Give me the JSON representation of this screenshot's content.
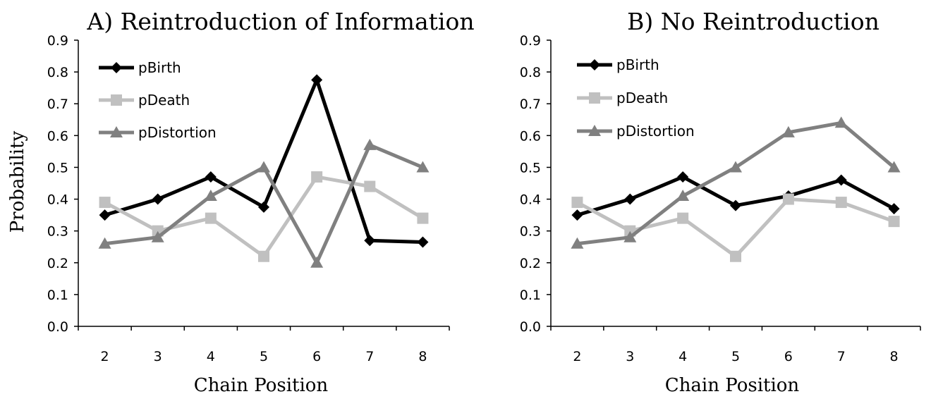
{
  "chart_data": [
    {
      "type": "line",
      "title": "A) Reintroduction of Information",
      "xlabel": "Chain Position",
      "ylabel": "Probability",
      "categories": [
        "2",
        "3",
        "4",
        "5",
        "6",
        "7",
        "8"
      ],
      "ylim": [
        0,
        0.9
      ],
      "yticks": [
        "0.0",
        "0.1",
        "0.2",
        "0.3",
        "0.4",
        "0.5",
        "0.6",
        "0.7",
        "0.8",
        "0.9"
      ],
      "grid": false,
      "legend": "top-left",
      "series": [
        {
          "name": "pBirth",
          "color": "#000000",
          "marker": "diamond",
          "values": [
            0.35,
            0.4,
            0.47,
            0.375,
            0.775,
            0.27,
            0.265
          ]
        },
        {
          "name": "pDeath",
          "color": "#c0c0c0",
          "marker": "square",
          "values": [
            0.39,
            0.3,
            0.34,
            0.22,
            0.47,
            0.44,
            0.34
          ]
        },
        {
          "name": "pDistortion",
          "color": "#808080",
          "marker": "triangle",
          "values": [
            0.26,
            0.28,
            0.41,
            0.5,
            0.2,
            0.57,
            0.5
          ]
        }
      ]
    },
    {
      "type": "line",
      "title": "B) No Reintroduction",
      "xlabel": "Chain Position",
      "ylabel": "",
      "categories": [
        "2",
        "3",
        "4",
        "5",
        "6",
        "7",
        "8"
      ],
      "ylim": [
        0,
        0.9
      ],
      "yticks": [
        "0.0",
        "0.1",
        "0.2",
        "0.3",
        "0.4",
        "0.5",
        "0.6",
        "0.7",
        "0.8",
        "0.9"
      ],
      "grid": false,
      "legend": "top-left",
      "series": [
        {
          "name": "pBirth",
          "color": "#000000",
          "marker": "diamond",
          "values": [
            0.35,
            0.4,
            0.47,
            0.38,
            0.41,
            0.46,
            0.37
          ]
        },
        {
          "name": "pDeath",
          "color": "#c0c0c0",
          "marker": "square",
          "values": [
            0.39,
            0.3,
            0.34,
            0.22,
            0.4,
            0.39,
            0.33
          ]
        },
        {
          "name": "pDistortion",
          "color": "#808080",
          "marker": "triangle",
          "values": [
            0.26,
            0.28,
            0.41,
            0.5,
            0.61,
            0.64,
            0.5
          ]
        }
      ]
    }
  ]
}
